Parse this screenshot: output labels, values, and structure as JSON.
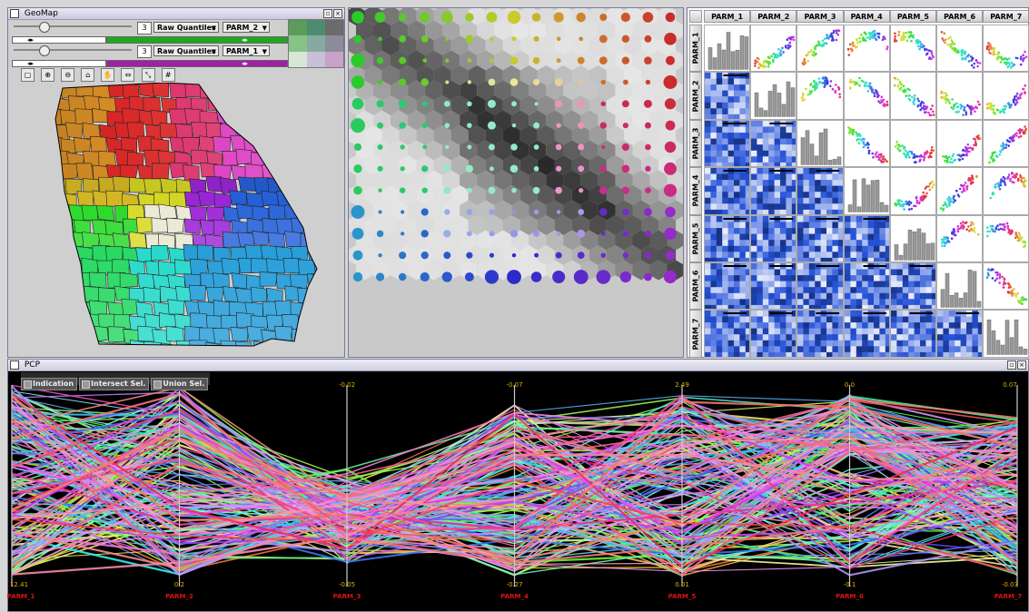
{
  "geomap": {
    "title": "GeoMap",
    "row1": {
      "classes": "3",
      "method": "Raw Quantiles",
      "variable": "PARM_2",
      "color": "#1fa81f"
    },
    "row2": {
      "classes": "3",
      "method": "Raw Quantiles",
      "variable": "PARM_1",
      "color": "#a21fa8"
    },
    "legend_colors": [
      "#5c9b5c",
      "#4d8d6d",
      "#6b6b6b",
      "#87c287",
      "#86a9a0",
      "#8b8b9b",
      "#d6e7d6",
      "#c9bfd8",
      "#c7a2c9"
    ]
  },
  "hexmap": {},
  "splom": {
    "params": [
      "PARM_1",
      "PARM_2",
      "PARM_3",
      "PARM_4",
      "PARM_5",
      "PARM_6",
      "PARM_7"
    ]
  },
  "pcp": {
    "title": "PCP",
    "buttons": {
      "indication": "Indication",
      "intersect": "Intersect Sel.",
      "union": "Union Sel."
    },
    "axes": [
      {
        "name": "PARM_1",
        "max": "",
        "min": "12.41"
      },
      {
        "name": "PARM_2",
        "max": "",
        "min": "0.2"
      },
      {
        "name": "PARM_3",
        "max": "-0.02",
        "min": "-0.05"
      },
      {
        "name": "PARM_4",
        "max": "-0.07",
        "min": "-0.27"
      },
      {
        "name": "PARM_5",
        "max": "2.49",
        "min": "0.01"
      },
      {
        "name": "PARM_6",
        "max": "0.0",
        "min": "-0.1"
      },
      {
        "name": "PARM_7",
        "max": "0.07",
        "min": "-0.03"
      }
    ]
  }
}
